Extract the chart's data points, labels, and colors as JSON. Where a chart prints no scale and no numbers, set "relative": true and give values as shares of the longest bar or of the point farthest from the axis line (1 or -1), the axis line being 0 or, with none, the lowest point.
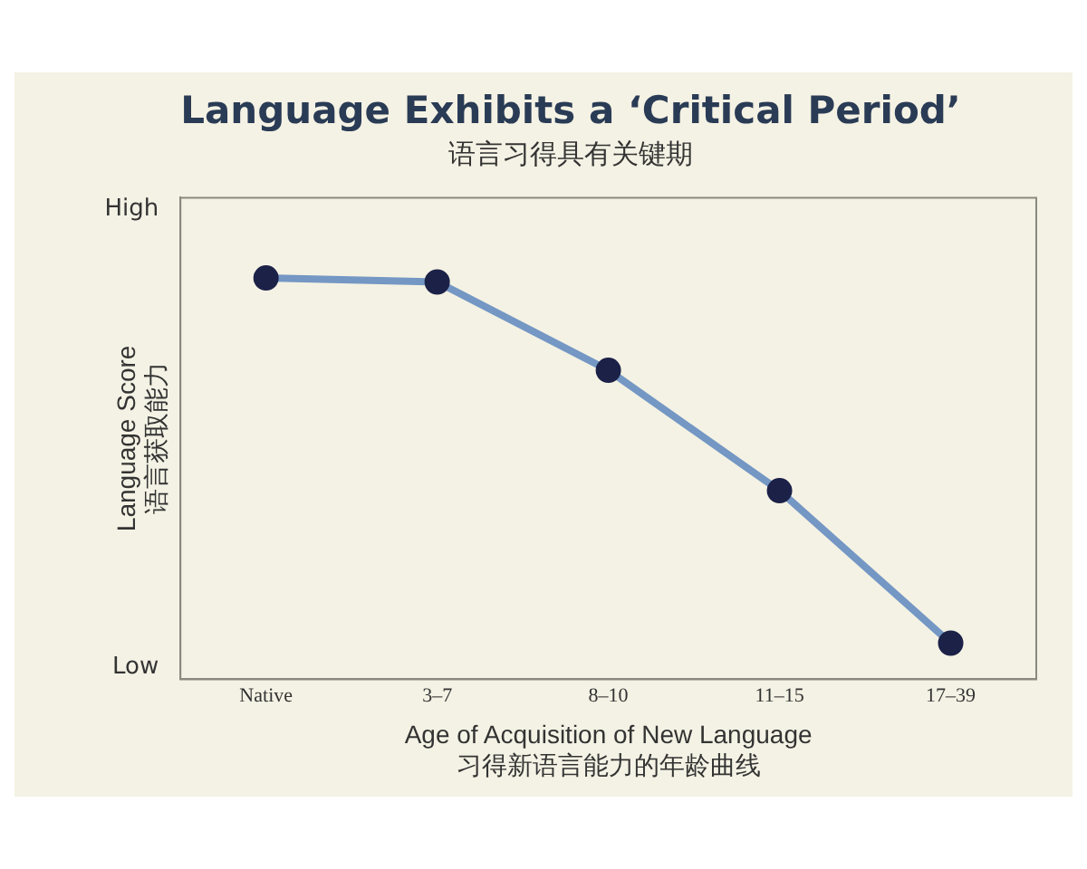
{
  "chart_data": {
    "type": "line",
    "title": "Language Exhibits a ‘Critical Period’",
    "subtitle": "语言习得具有关键期",
    "xlabel": "Age of Acquisition of New Language\n习得新语言能力的年龄曲线",
    "ylabel": "Language Score\n语言获取能力",
    "categories": [
      "Native",
      "3–7",
      "8–10",
      "11–15",
      "17–39"
    ],
    "series": [
      {
        "color": "#7497c4",
        "values": [
          1,
          0.99,
          0.77,
          0.47,
          0.09
        ]
      }
    ],
    "relative": true,
    "annotations": [
      "High",
      "Low"
    ],
    "grid": false,
    "legend": false,
    "marker": "circle",
    "line_style": "solid"
  }
}
